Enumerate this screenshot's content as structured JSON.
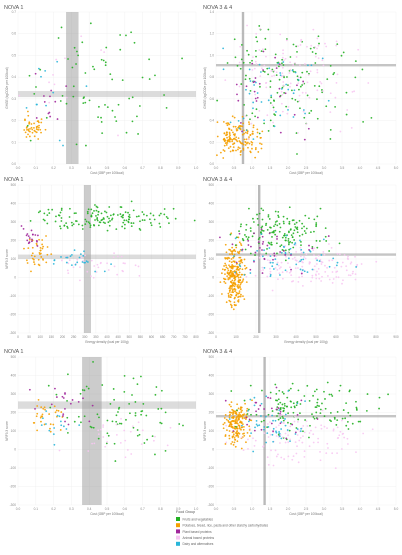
{
  "figure": {
    "legend": {
      "title": "Food Group",
      "items": [
        {
          "label": "Fruits and vegetables",
          "color": "#22b022"
        },
        {
          "label": "Potatoes, bread, rice, pasta and other starchy carbohydrates",
          "color": "#f5a000"
        },
        {
          "label": "Plant based proteins",
          "color": "#a0269b"
        },
        {
          "label": "Animal based proteins",
          "color": "#f7c6f2"
        },
        {
          "label": "Dairy and alternatives",
          "color": "#29b6d9"
        }
      ]
    }
  },
  "chart_data": [
    {
      "type": "scatter",
      "title": "NOVA 1",
      "xlabel": "Cost (GBP per 100kcal)",
      "ylabel": "GHGE (kgCO2e per 100kcal)",
      "x_ticks": [
        "0.0",
        "0.1",
        "0.2",
        "0.3",
        "0.4",
        "0.5",
        "0.6",
        "0.7",
        "0.8",
        "0.9",
        "1.0"
      ],
      "y_ticks": [
        "0.0",
        "0.1",
        "0.2",
        "0.3",
        "0.4",
        "0.5",
        "0.6",
        "0.7"
      ],
      "vband": [
        0.27,
        0.34
      ],
      "hband": [
        0.52,
        0.56
      ],
      "group_profile": [
        0.45,
        0.2,
        0.1,
        0.1,
        0.15
      ]
    },
    {
      "type": "scatter",
      "title": "NOVA 3 & 4",
      "xlabel": "Cost (GBP per 100kcal)",
      "ylabel": "GHGE (kgCO2e per 100kcal)",
      "x_ticks": [
        "0.0",
        "0.5",
        "1.0",
        "1.5",
        "2.0",
        "2.5",
        "3.0",
        "3.5",
        "4.0",
        "4.5",
        "5.0"
      ],
      "y_ticks": [
        "0.0",
        "0.2",
        "0.4",
        "0.6",
        "0.8",
        "1.0",
        "1.2",
        "1.4"
      ],
      "vline": 0.15,
      "hline": 0.35,
      "group_profile": [
        0.3,
        0.3,
        0.08,
        0.22,
        0.1
      ]
    },
    {
      "type": "scatter",
      "title": "NOVA 1",
      "xlabel": "Energy density (kcal per 100g)",
      "ylabel": "NRF9.3 score",
      "x_ticks": [
        "0",
        "50",
        "100",
        "150",
        "200",
        "250",
        "300",
        "350",
        "400",
        "450",
        "500",
        "550",
        "600",
        "650",
        "700",
        "750",
        "800"
      ],
      "y_ticks": [
        "500",
        "400",
        "300",
        "200",
        "100",
        "0",
        "-100",
        "-200",
        "-300"
      ],
      "vband": [
        0.37,
        0.41
      ],
      "hband": [
        0.47,
        0.5
      ],
      "group_profile": [
        0.55,
        0.15,
        0.1,
        0.12,
        0.08
      ]
    },
    {
      "type": "scatter",
      "title": "NOVA 3 & 4",
      "xlabel": "Energy density (kcal per 100g)",
      "ylabel": "NRF9.3 score",
      "x_ticks": [
        "0",
        "100",
        "200",
        "300",
        "400",
        "500",
        "600",
        "700",
        "800",
        "900"
      ],
      "y_ticks": [
        "500",
        "400",
        "300",
        "200",
        "100",
        "0",
        "-100",
        "-200",
        "-300"
      ],
      "vline": 0.24,
      "hline": 0.47,
      "group_profile": [
        0.3,
        0.35,
        0.07,
        0.2,
        0.08
      ]
    },
    {
      "type": "scatter",
      "title": "NOVA 1",
      "xlabel": "Cost (GBP per 100kcal)",
      "ylabel": "NRF9.3 score",
      "x_ticks": [
        "0.0",
        "0.1",
        "0.2",
        "0.3",
        "0.4",
        "0.5",
        "0.6",
        "0.7",
        "0.8",
        "0.9",
        "1.0"
      ],
      "y_ticks": [
        "500",
        "400",
        "300",
        "200",
        "100",
        "0",
        "-100",
        "-200",
        "-300"
      ],
      "vband": [
        0.36,
        0.47
      ],
      "hband": [
        0.3,
        0.35
      ],
      "group_profile": [
        0.45,
        0.2,
        0.12,
        0.13,
        0.1
      ]
    },
    {
      "type": "scatter",
      "title": "NOVA 3 & 4",
      "xlabel": "Cost (GBP per 100kcal)",
      "ylabel": "NRF9.3 score",
      "x_ticks": [
        "0.0",
        "0.5",
        "1.0",
        "1.5",
        "2.0",
        "2.5",
        "3.0",
        "3.5",
        "4.0",
        "4.5",
        "5.0"
      ],
      "y_ticks": [
        "500",
        "400",
        "300",
        "200",
        "100",
        "0",
        "-100",
        "-200",
        "-300"
      ],
      "vline": 0.27,
      "hline": 0.4,
      "group_profile": [
        0.35,
        0.3,
        0.07,
        0.18,
        0.1
      ]
    }
  ]
}
